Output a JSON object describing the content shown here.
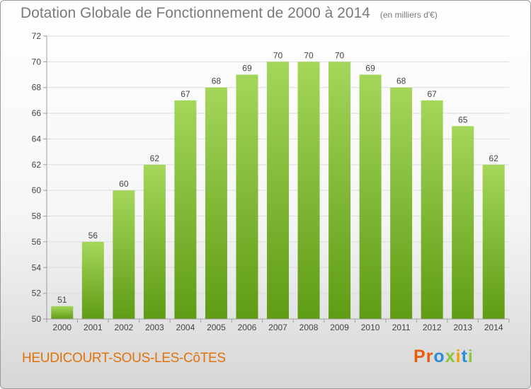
{
  "header": {
    "title": "Dotation Globale de Fonctionnement de 2000 à 2014",
    "unit": "(en milliers d'€)"
  },
  "footer": {
    "commune": "HEUDICOURT-SOUS-LES-CôTES",
    "logo": [
      "P",
      "r",
      "o",
      "x",
      "i",
      "t",
      "i"
    ],
    "logo_colors": [
      "#e85a0c",
      "#e85a0c",
      "#2a8fd6",
      "#8cc63f",
      "#f2a100",
      "#2a8fd6",
      "#8cc63f"
    ]
  },
  "chart_data": {
    "type": "bar",
    "title": "Dotation Globale de Fonctionnement de 2000 à 2014",
    "subtitle": "(en milliers d'€)",
    "xlabel": "",
    "ylabel": "",
    "categories": [
      "2000",
      "2001",
      "2002",
      "2003",
      "2004",
      "2005",
      "2006",
      "2007",
      "2008",
      "2009",
      "2010",
      "2011",
      "2012",
      "2013",
      "2014"
    ],
    "values": [
      51,
      56,
      60,
      62,
      67,
      68,
      69,
      70,
      70,
      70,
      69,
      68,
      67,
      65,
      62
    ],
    "data_labels": [
      "51",
      "56",
      "60",
      "62",
      "67",
      "68",
      "69",
      "70",
      "70",
      "70",
      "69",
      "68",
      "67",
      "65",
      "62"
    ],
    "ylim": [
      50,
      72
    ],
    "yticks": [
      50,
      52,
      54,
      56,
      58,
      60,
      62,
      64,
      66,
      68,
      70,
      72
    ],
    "ytick_labels": [
      "50",
      "52",
      "54",
      "56",
      "58",
      "60",
      "62",
      "64",
      "66",
      "68",
      "70",
      "72"
    ],
    "grid": true,
    "colors": {
      "bar_light": "#a4d65a",
      "bar_dark": "#5f9c14",
      "grid": "#dcdcdc",
      "axis": "#9c9c9c",
      "text": "#444444"
    }
  }
}
